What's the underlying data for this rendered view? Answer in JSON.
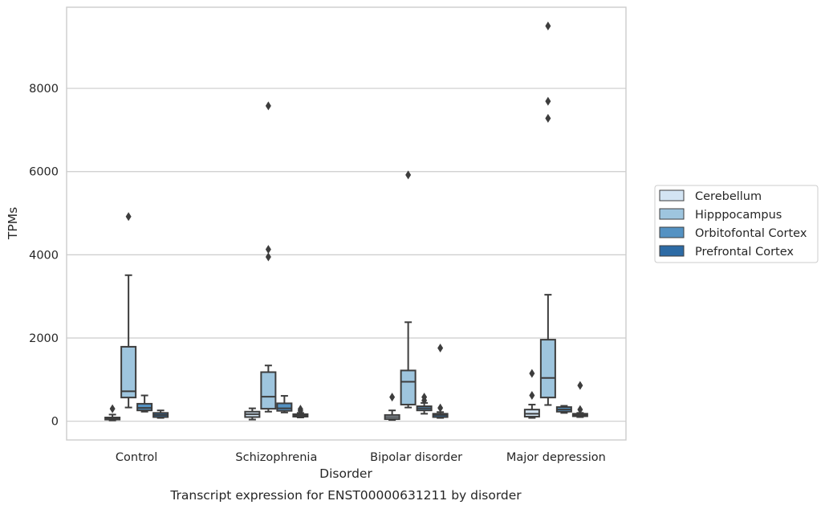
{
  "chart_data": {
    "type": "box",
    "title": "",
    "caption": "Transcript expression for ENST00000631211 by disorder",
    "xlabel": "Disorder",
    "ylabel": "TPMs",
    "ylim": [
      -450,
      9950
    ],
    "yticks": [
      0,
      2000,
      4000,
      6000,
      8000
    ],
    "grid": "horizontal",
    "legend_position": "right",
    "categories": [
      "Control",
      "Schizophrenia",
      "Bipolar disorder",
      "Major depression"
    ],
    "series": [
      {
        "name": "Cerebellum",
        "color": "#d3e4f3",
        "boxes": [
          {
            "whisker_low": 20,
            "q1": 40,
            "median": 65,
            "q3": 90,
            "whisker_high": 160,
            "outliers": [
              300
            ]
          },
          {
            "whisker_low": 40,
            "q1": 100,
            "median": 170,
            "q3": 230,
            "whisker_high": 310,
            "outliers": []
          },
          {
            "whisker_low": 30,
            "q1": 50,
            "median": 100,
            "q3": 150,
            "whisker_high": 260,
            "outliers": [
              580
            ]
          },
          {
            "whisker_low": 80,
            "q1": 110,
            "median": 180,
            "q3": 280,
            "whisker_high": 400,
            "outliers": [
              620,
              1150
            ]
          }
        ]
      },
      {
        "name": "Hipppocampus",
        "color": "#9ec5de",
        "boxes": [
          {
            "whisker_low": 330,
            "q1": 570,
            "median": 720,
            "q3": 1790,
            "whisker_high": 3510,
            "outliers": [
              4920
            ]
          },
          {
            "whisker_low": 230,
            "q1": 300,
            "median": 590,
            "q3": 1180,
            "whisker_high": 1340,
            "outliers": [
              3950,
              4130,
              7580
            ]
          },
          {
            "whisker_low": 330,
            "q1": 400,
            "median": 950,
            "q3": 1220,
            "whisker_high": 2380,
            "outliers": [
              5920
            ]
          },
          {
            "whisker_low": 390,
            "q1": 570,
            "median": 1040,
            "q3": 1960,
            "whisker_high": 3040,
            "outliers": [
              7280,
              7690,
              9500
            ]
          }
        ]
      },
      {
        "name": "Orbitofontal Cortex",
        "color": "#5492c3",
        "boxes": [
          {
            "whisker_low": 230,
            "q1": 260,
            "median": 320,
            "q3": 420,
            "whisker_high": 620,
            "outliers": []
          },
          {
            "whisker_low": 210,
            "q1": 250,
            "median": 310,
            "q3": 430,
            "whisker_high": 610,
            "outliers": []
          },
          {
            "whisker_low": 180,
            "q1": 260,
            "median": 310,
            "q3": 360,
            "whisker_high": 440,
            "outliers": [
              500,
              580
            ]
          },
          {
            "whisker_low": 200,
            "q1": 230,
            "median": 280,
            "q3": 340,
            "whisker_high": 370,
            "outliers": []
          }
        ]
      },
      {
        "name": "Prefrontal Cortex",
        "color": "#2d6ba5",
        "boxes": [
          {
            "whisker_low": 80,
            "q1": 100,
            "median": 150,
            "q3": 200,
            "whisker_high": 260,
            "outliers": []
          },
          {
            "whisker_low": 90,
            "q1": 110,
            "median": 140,
            "q3": 170,
            "whisker_high": 200,
            "outliers": [
              250,
              290
            ]
          },
          {
            "whisker_low": 80,
            "q1": 100,
            "median": 150,
            "q3": 180,
            "whisker_high": 220,
            "outliers": [
              320,
              1760
            ]
          },
          {
            "whisker_low": 100,
            "q1": 120,
            "median": 150,
            "q3": 180,
            "whisker_high": 200,
            "outliers": [
              280,
              860
            ]
          }
        ]
      }
    ]
  }
}
